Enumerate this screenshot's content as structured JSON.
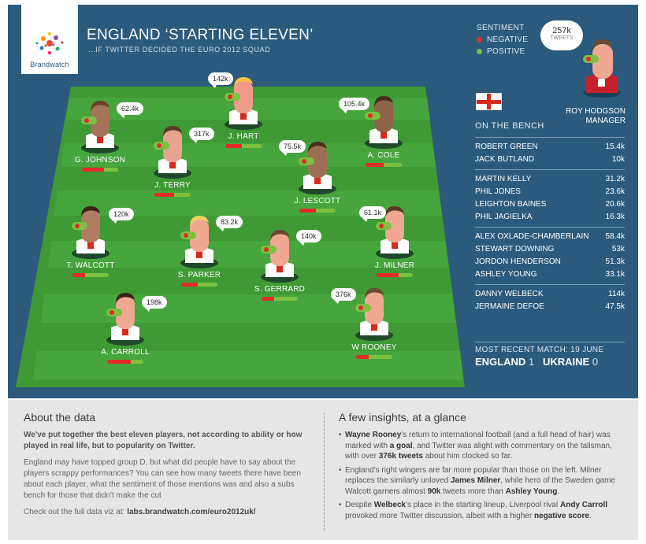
{
  "header": {
    "logo_text": "Brandwatch",
    "title": "ENGLAND ‘STARTING ELEVEN’",
    "subtitle": "...IF TWITTER DECIDED THE EURO 2012 SQUAD"
  },
  "legend": {
    "title": "SENTIMENT",
    "negative": "NEGATIVE",
    "positive": "POSITIVE",
    "negative_color": "#e52a2a",
    "positive_color": "#7cc142"
  },
  "manager": {
    "tweets": "257k",
    "tweets_label": "TWEETS",
    "name": "ROY HODGSON",
    "role": "MANAGER"
  },
  "players": [
    {
      "name": "J. HART",
      "tweets": "142k",
      "negative_share": 0.45
    },
    {
      "name": "G. JOHNSON",
      "tweets": "62.4k",
      "negative_share": 0.6
    },
    {
      "name": "A. COLE",
      "tweets": "105.4k",
      "negative_share": 0.5
    },
    {
      "name": "J. TERRY",
      "tweets": "317k",
      "negative_share": 0.55
    },
    {
      "name": "J. LESCOTT",
      "tweets": "75.5k",
      "negative_share": 0.45
    },
    {
      "name": "T. WALCOTT",
      "tweets": "120k",
      "negative_share": 0.35
    },
    {
      "name": "S. PARKER",
      "tweets": "83.2k",
      "negative_share": 0.45
    },
    {
      "name": "S. GERRARD",
      "tweets": "140k",
      "negative_share": 0.35
    },
    {
      "name": "J. MILNER",
      "tweets": "61.1k",
      "negative_share": 0.6
    },
    {
      "name": "A. CARROLL",
      "tweets": "198k",
      "negative_share": 0.65
    },
    {
      "name": "W ROONEY",
      "tweets": "376k",
      "negative_share": 0.35
    }
  ],
  "bench": {
    "title": "ON THE BENCH",
    "groups": [
      [
        {
          "name": "ROBERT GREEN",
          "tweets": "15.4k"
        },
        {
          "name": "JACK BUTLAND",
          "tweets": "10k"
        }
      ],
      [
        {
          "name": "MARTIN KELLY",
          "tweets": "31.2k"
        },
        {
          "name": "PHIL JONES",
          "tweets": "23.6k"
        },
        {
          "name": "LEIGHTON BAINES",
          "tweets": "20.6k"
        },
        {
          "name": "PHIL JAGIELKA",
          "tweets": "16.3k"
        }
      ],
      [
        {
          "name": "ALEX OXLADE-CHAMBERLAIN",
          "tweets": "58.4k"
        },
        {
          "name": "STEWART DOWNING",
          "tweets": "53k"
        },
        {
          "name": "JORDON HENDERSON",
          "tweets": "51.3k"
        },
        {
          "name": "ASHLEY YOUNG",
          "tweets": "33.1k"
        }
      ],
      [
        {
          "name": "DANNY WELBECK",
          "tweets": "114k"
        },
        {
          "name": "JERMAINE DEFOE",
          "tweets": "47.5k"
        }
      ]
    ]
  },
  "recent_match": {
    "label": "MOST RECENT MATCH: 19 JUNE",
    "home": "ENGLAND",
    "home_score": "1",
    "away": "UKRAINE",
    "away_score": "0"
  },
  "about": {
    "title": "About the data",
    "lead": "We've put together the best eleven players, not according to ability or how played in real life, but to popularity on Twitter.",
    "body": "England may have topped group D, but what did people have to say about the players scrappy performances? You can see how many tweets there have been about each player, what the sentiment of those mentions was and also a subs bench for those that didn't make the cut",
    "viz_prefix": "Check out the full data viz at: ",
    "viz_link": "labs.brandwatch.com/euro2012uk/"
  },
  "insights": {
    "title": "A few insights, at a glance",
    "i1_a": "Wayne Rooney",
    "i1_b": "'s return to international football (and a full head of hair) was marked with ",
    "i1_c": "a goal",
    "i1_d": ", and Twitter was alight with commentary on the talisman, with over ",
    "i1_e": "376k tweets",
    "i1_f": " about him clocked so far.",
    "i2_a": "England's right wingers are far more popular than those on the left. Milner replaces the similarly unloved ",
    "i2_b": "James Milner",
    "i2_c": ", while hero of the Sweden game Walcott garners almost ",
    "i2_d": "90k",
    "i2_e": " tweets more than ",
    "i2_f": "Ashley Young",
    "i2_g": ".",
    "i3_a": "Despite ",
    "i3_b": "Welbeck",
    "i3_c": "'s place in the starting lineup, Liverpool rival ",
    "i3_d": "Andy Carroll",
    "i3_e": " provoked more Twitter discussion, albeit with a higher ",
    "i3_f": "negative score",
    "i3_g": "."
  }
}
